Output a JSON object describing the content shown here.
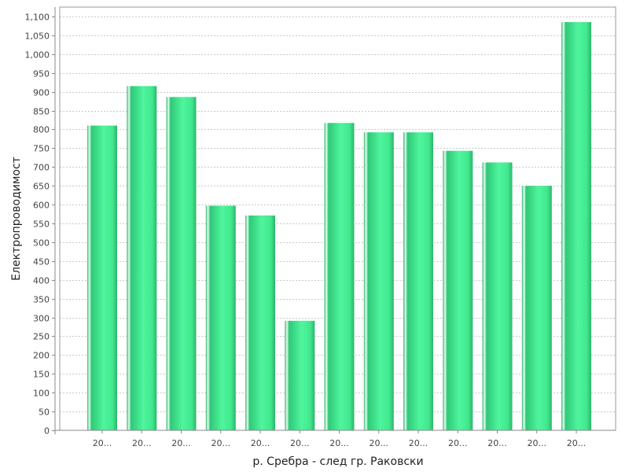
{
  "chart_data": {
    "type": "bar",
    "categories": [
      "20...",
      "20...",
      "20...",
      "20...",
      "20...",
      "20...",
      "20...",
      "20...",
      "20...",
      "20...",
      "20...",
      "20...",
      "20..."
    ],
    "values": [
      810,
      915,
      886,
      597,
      571,
      291,
      817,
      792,
      792,
      743,
      712,
      650,
      1085
    ],
    "xlabel": "р. Сребра - след гр. Раковски",
    "ylabel": "Електропроводимост",
    "ylim": [
      0,
      1125
    ],
    "yticks": [
      0,
      50,
      100,
      150,
      200,
      250,
      300,
      350,
      400,
      450,
      500,
      550,
      600,
      650,
      700,
      750,
      800,
      850,
      900,
      950,
      1000,
      1050,
      1100
    ],
    "ytick_labels": [
      "0",
      "50",
      "100",
      "150",
      "200",
      "250",
      "300",
      "350",
      "400",
      "450",
      "500",
      "550",
      "600",
      "650",
      "700",
      "750",
      "800",
      "850",
      "900",
      "950",
      "1,000",
      "1,050",
      "1,100"
    ],
    "grid": true,
    "legend": "none",
    "bar_color": "#3fe08a"
  }
}
